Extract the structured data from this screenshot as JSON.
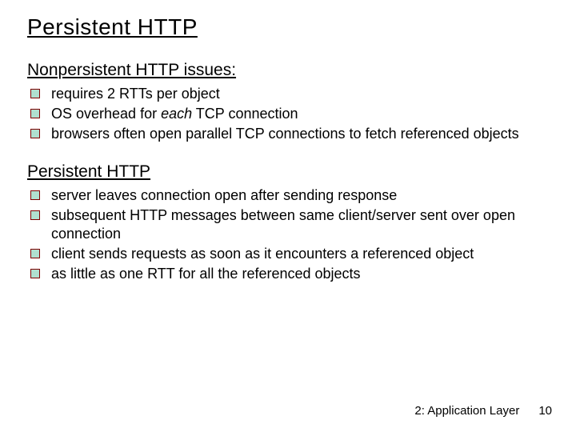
{
  "colors": {
    "text": "#000000",
    "background": "#ffffff",
    "bullet_border": "#800000",
    "bullet_fill": "#b0e0d0"
  },
  "title": "Persistent HTTP",
  "sections": [
    {
      "heading": "Nonpersistent HTTP issues:",
      "items": [
        {
          "text": "requires 2 RTTs per object"
        },
        {
          "prefix": "OS overhead for ",
          "italic": "each",
          "suffix": " TCP connection"
        },
        {
          "text": "browsers often open parallel TCP connections to fetch referenced objects"
        }
      ]
    },
    {
      "heading": "Persistent  HTTP",
      "items": [
        {
          "text": "server leaves connection open after sending response"
        },
        {
          "text": "subsequent HTTP messages  between same client/server sent over open connection"
        },
        {
          "text": "client sends requests as soon as it encounters a referenced object"
        },
        {
          "text": "as little as one RTT for all the referenced objects"
        }
      ]
    }
  ],
  "footer": {
    "chapter": "2: Application Layer",
    "page": "10"
  }
}
